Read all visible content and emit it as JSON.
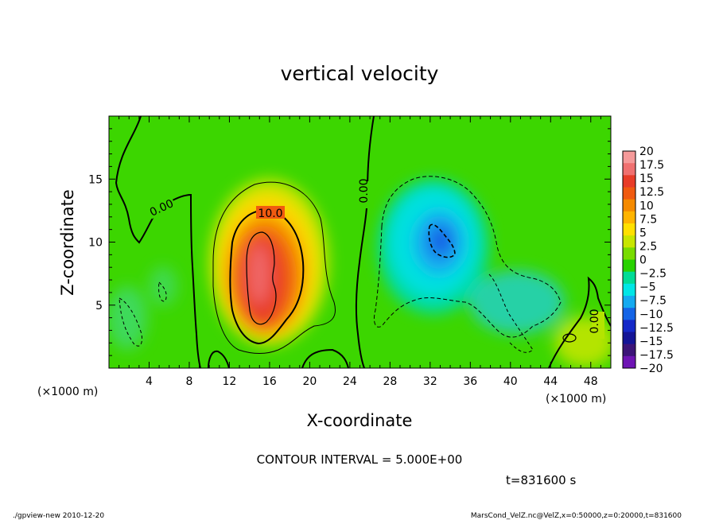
{
  "chart_data": {
    "type": "heatmap",
    "title": "vertical velocity",
    "xlabel": "X-coordinate",
    "ylabel": "Z-coordinate",
    "x_unit": "(×1000 m)",
    "y_unit": "(×1000 m)",
    "xlim": [
      0,
      50
    ],
    "ylim": [
      0,
      20
    ],
    "x_ticks": [
      4,
      8,
      12,
      16,
      20,
      24,
      28,
      32,
      36,
      40,
      44,
      48
    ],
    "y_ticks": [
      5,
      10,
      15
    ],
    "colorbar": {
      "min": -20,
      "max": 20,
      "labels": [
        "20",
        "17.5",
        "15",
        "12.5",
        "10",
        "7.5",
        "5",
        "2.5",
        "0",
        "−2.5",
        "−5",
        "−7.5",
        "−10",
        "−12.5",
        "−15",
        "−17.5",
        "−20"
      ],
      "colors": [
        "#f59a9a",
        "#f07070",
        "#e83c28",
        "#f05a10",
        "#f58a00",
        "#ffb400",
        "#ffe000",
        "#c8e600",
        "#78dc00",
        "#28d200",
        "#00dc96",
        "#00e6e6",
        "#14aaf0",
        "#1464e6",
        "#1428c8",
        "#141496",
        "#3c1478",
        "#6e14b4"
      ]
    },
    "contour_interval_text": "CONTOUR INTERVAL = 5.000E+00",
    "contour_labels": [
      "0.00",
      "10.0",
      "0.00",
      "0.00"
    ],
    "features": [
      {
        "type": "updraft",
        "center": [
          15,
          7.5
        ],
        "peak": 20
      },
      {
        "type": "downdraft",
        "center": [
          33,
          10
        ],
        "peak": -10
      }
    ],
    "time_text": "t=831600 s"
  },
  "footer": {
    "left": "./gpview-new   2010-12-20",
    "right": "MarsCond_VelZ.nc@VelZ,x=0:50000,z=0:20000,t=831600"
  }
}
